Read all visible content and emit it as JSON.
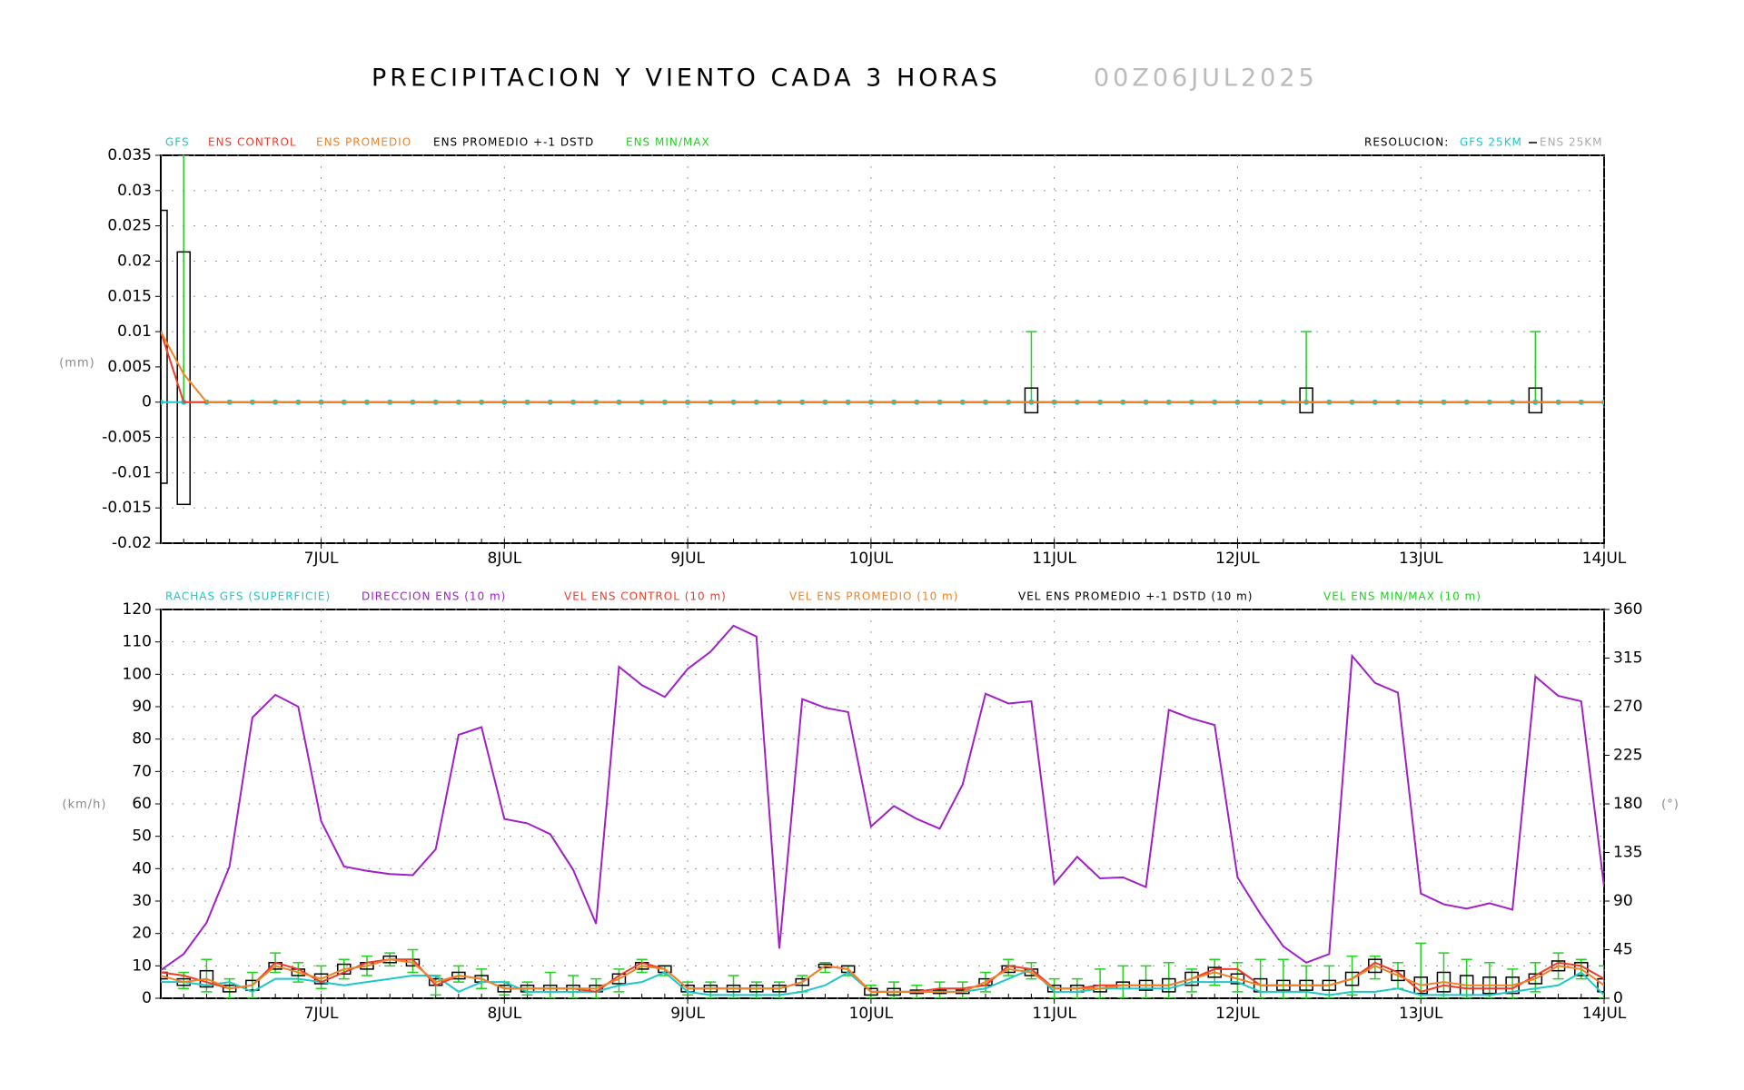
{
  "title": "PRECIPITACION Y VIENTO CADA 3 HORAS",
  "subtitle": "00Z06JUL2025",
  "chart_data": [
    {
      "type": "line",
      "ylabel": "(mm)",
      "grid": true,
      "categories": [
        null,
        null,
        null,
        null,
        null,
        null,
        null,
        "7JUL",
        null,
        null,
        null,
        null,
        null,
        null,
        null,
        "8JUL",
        null,
        null,
        null,
        null,
        null,
        null,
        null,
        "9JUL",
        null,
        null,
        null,
        null,
        null,
        null,
        null,
        "10JUL",
        null,
        null,
        null,
        null,
        null,
        null,
        null,
        "11JUL",
        null,
        null,
        null,
        null,
        null,
        null,
        null,
        "12JUL",
        null,
        null,
        null,
        null,
        null,
        null,
        null,
        "13JUL",
        null,
        null,
        null,
        null,
        null,
        null,
        null,
        "14JUL"
      ],
      "ylim": [
        -0.02,
        0.035
      ],
      "yticks": [
        0.035,
        0.03,
        0.025,
        0.02,
        0.015,
        0.01,
        0.005,
        0,
        -0.005,
        -0.01,
        -0.015,
        -0.02
      ],
      "series": [
        {
          "name": "GFS",
          "color": "#1ec8c8",
          "markers": true,
          "values": [
            0,
            0,
            0,
            0,
            0,
            0,
            0,
            0,
            0,
            0,
            0,
            0,
            0,
            0,
            0,
            0,
            0,
            0,
            0,
            0,
            0,
            0,
            0,
            0,
            0,
            0,
            0,
            0,
            0,
            0,
            0,
            0,
            0,
            0,
            0,
            0,
            0,
            0,
            0,
            0,
            0,
            0,
            0,
            0,
            0,
            0,
            0,
            0,
            0,
            0,
            0,
            0,
            0,
            0,
            0,
            0,
            0,
            0,
            0,
            0,
            0,
            0,
            0,
            0
          ]
        },
        {
          "name": "ENS CONTROL",
          "color": "#f03c28",
          "values": [
            0.01,
            0,
            0,
            0,
            0,
            0,
            0,
            0,
            0,
            0,
            0,
            0,
            0,
            0,
            0,
            0,
            0,
            0,
            0,
            0,
            0,
            0,
            0,
            0,
            0,
            0,
            0,
            0,
            0,
            0,
            0,
            0,
            0,
            0,
            0,
            0,
            0,
            0,
            0,
            0,
            0,
            0,
            0,
            0,
            0,
            0,
            0,
            0,
            0,
            0,
            0,
            0,
            0,
            0,
            0,
            0,
            0,
            0,
            0,
            0,
            0,
            0,
            0,
            0
          ]
        },
        {
          "name": "ENS PROMEDIO",
          "color": "#f08228",
          "values": [
            0.01,
            0.004,
            0,
            0,
            0,
            0,
            0,
            0,
            0,
            0,
            0,
            0,
            0,
            0,
            0,
            0,
            0,
            0,
            0,
            0,
            0,
            0,
            0,
            0,
            0,
            0,
            0,
            0,
            0,
            0,
            0,
            0,
            0,
            0,
            0,
            0,
            0,
            0,
            0,
            0,
            0,
            0,
            0,
            0,
            0,
            0,
            0,
            0,
            0,
            0,
            0,
            0,
            0,
            0,
            0,
            0,
            0,
            0,
            0,
            0,
            0,
            0,
            0,
            0
          ]
        }
      ],
      "band": {
        "name": "ENS PROMEDIO +-1 DSTD",
        "color": "#000000",
        "low": [
          -0.0115,
          -0.0145,
          null,
          null,
          null,
          null,
          null,
          null,
          null,
          null,
          null,
          null,
          null,
          null,
          null,
          null,
          null,
          null,
          null,
          null,
          null,
          null,
          null,
          null,
          null,
          null,
          null,
          null,
          null,
          null,
          null,
          null,
          null,
          null,
          null,
          null,
          null,
          null,
          -0.0015,
          null,
          null,
          null,
          null,
          null,
          null,
          null,
          null,
          null,
          null,
          null,
          -0.0015,
          null,
          null,
          null,
          null,
          null,
          null,
          null,
          null,
          null,
          -0.0015,
          null,
          null,
          null
        ],
        "high": [
          0.0272,
          0.0213,
          null,
          null,
          null,
          null,
          null,
          null,
          null,
          null,
          null,
          null,
          null,
          null,
          null,
          null,
          null,
          null,
          null,
          null,
          null,
          null,
          null,
          null,
          null,
          null,
          null,
          null,
          null,
          null,
          null,
          null,
          null,
          null,
          null,
          null,
          null,
          null,
          0.002,
          null,
          null,
          null,
          null,
          null,
          null,
          null,
          null,
          null,
          null,
          null,
          0.002,
          null,
          null,
          null,
          null,
          null,
          null,
          null,
          null,
          null,
          0.002,
          null,
          null,
          null
        ]
      },
      "range": {
        "name": "ENS MIN/MAX",
        "color": "#1ed21e",
        "min": [
          null,
          0,
          null,
          null,
          null,
          null,
          null,
          null,
          null,
          null,
          null,
          null,
          null,
          null,
          null,
          null,
          null,
          null,
          null,
          null,
          null,
          null,
          null,
          null,
          null,
          null,
          null,
          null,
          null,
          null,
          null,
          null,
          null,
          null,
          null,
          null,
          null,
          null,
          0,
          null,
          null,
          null,
          null,
          null,
          null,
          null,
          null,
          null,
          null,
          null,
          0,
          null,
          null,
          null,
          null,
          null,
          null,
          null,
          null,
          null,
          0,
          null,
          null,
          null
        ],
        "max": [
          null,
          0.035,
          null,
          null,
          null,
          null,
          null,
          null,
          null,
          null,
          null,
          null,
          null,
          null,
          null,
          null,
          null,
          null,
          null,
          null,
          null,
          null,
          null,
          null,
          null,
          null,
          null,
          null,
          null,
          null,
          null,
          null,
          null,
          null,
          null,
          null,
          null,
          null,
          0.01,
          null,
          null,
          null,
          null,
          null,
          null,
          null,
          null,
          null,
          null,
          null,
          0.01,
          null,
          null,
          null,
          null,
          null,
          null,
          null,
          null,
          null,
          0.01,
          null,
          null,
          null
        ]
      },
      "resolution_label": "RESOLUCION:",
      "resolution": [
        {
          "name": "GFS 25KM",
          "color": "#1ec8c8"
        },
        {
          "name": "ENS 25KM",
          "color": "#aaaaaa"
        }
      ]
    },
    {
      "type": "line",
      "ylabel": "(km/h)",
      "y2label": "(°)",
      "grid": true,
      "categories": [
        null,
        null,
        null,
        null,
        null,
        null,
        null,
        "7JUL",
        null,
        null,
        null,
        null,
        null,
        null,
        null,
        "8JUL",
        null,
        null,
        null,
        null,
        null,
        null,
        null,
        "9JUL",
        null,
        null,
        null,
        null,
        null,
        null,
        null,
        "10JUL",
        null,
        null,
        null,
        null,
        null,
        null,
        null,
        "11JUL",
        null,
        null,
        null,
        null,
        null,
        null,
        null,
        "12JUL",
        null,
        null,
        null,
        null,
        null,
        null,
        null,
        "13JUL",
        null,
        null,
        null,
        null,
        null,
        null,
        null,
        "14JUL"
      ],
      "ylim": [
        0,
        120
      ],
      "yticks": [
        0,
        10,
        20,
        30,
        40,
        50,
        60,
        70,
        80,
        90,
        100,
        110,
        120
      ],
      "y2lim": [
        0,
        360
      ],
      "y2ticks": [
        0,
        45,
        90,
        135,
        180,
        225,
        270,
        315,
        360
      ],
      "series": [
        {
          "name": "RACHAS GFS (SUPERFICIE)",
          "color": "#1ec8c8",
          "values": [
            5,
            5,
            4,
            5,
            2,
            6,
            6,
            5,
            4,
            5,
            6,
            7,
            7,
            2,
            5,
            5,
            2,
            2,
            2,
            2,
            4,
            5,
            8,
            2,
            1,
            1,
            1,
            1,
            2,
            4,
            8,
            2,
            2,
            2,
            2,
            2,
            3,
            6,
            9,
            2,
            2,
            3,
            3,
            3,
            3,
            5,
            5,
            5,
            2,
            2,
            2,
            1,
            2,
            2,
            3,
            1,
            1,
            1,
            1,
            2,
            3,
            4,
            8,
            1
          ]
        },
        {
          "name": "DIRECCION ENS (10 m)",
          "color": "#a020c8",
          "axis": "y2",
          "values": [
            26,
            41,
            70,
            122,
            260,
            281,
            270,
            164,
            122,
            118,
            115,
            114,
            138,
            244,
            251,
            166,
            162,
            152,
            119,
            69,
            307,
            290,
            279,
            305,
            321,
            345,
            335,
            46,
            277,
            269,
            265,
            159,
            178,
            166,
            157,
            198,
            282,
            273,
            275,
            106,
            131,
            111,
            112,
            103,
            267,
            259,
            253,
            112,
            78,
            48,
            33,
            41,
            317,
            292,
            283,
            97,
            87,
            83,
            88,
            82,
            298,
            280,
            275,
            103
          ]
        },
        {
          "name": "VEL ENS CONTROL (10 m)",
          "color": "#f03c28",
          "values": [
            8,
            7,
            5,
            3,
            4,
            11,
            9,
            5,
            8,
            11,
            12,
            12,
            4,
            7,
            6,
            3,
            3,
            3,
            3,
            2,
            7,
            11,
            9,
            3,
            3,
            3,
            3,
            3,
            5,
            10,
            9,
            2,
            2,
            2,
            3,
            3,
            4,
            10,
            9,
            3,
            3,
            4,
            4,
            4,
            4,
            6,
            9,
            9,
            4,
            4,
            4,
            4,
            6,
            11,
            8,
            2,
            4,
            3,
            3,
            3,
            7,
            11,
            10,
            6
          ]
        },
        {
          "name": "VEL ENS PROMEDIO (10 m)",
          "color": "#f08228",
          "values": [
            7,
            5,
            6,
            3,
            4,
            10,
            8,
            6,
            9,
            10,
            12,
            11,
            5,
            7,
            6,
            3,
            3,
            3,
            3,
            3,
            6,
            10,
            9,
            3,
            3,
            3,
            3,
            3,
            5,
            10,
            9,
            2,
            2,
            2,
            2,
            2,
            5,
            9,
            8,
            3,
            3,
            3,
            4,
            4,
            4,
            6,
            8,
            6,
            4,
            4,
            4,
            4,
            6,
            10,
            7,
            4,
            5,
            4,
            4,
            4,
            6,
            10,
            9,
            4
          ]
        }
      ],
      "band": {
        "name": "VEL ENS PROMEDIO +-1 DSTD (10 m)",
        "color": "#000000",
        "low": [
          6,
          4,
          3.5,
          2,
          2.5,
          9,
          7,
          4.5,
          7.5,
          9,
          11,
          10,
          4,
          6,
          5,
          2,
          2,
          2,
          2,
          2,
          4.5,
          9,
          8,
          2,
          2,
          2,
          2,
          2,
          4,
          9.5,
          8,
          1,
          1,
          1.5,
          1.5,
          1.5,
          4,
          8,
          7,
          2,
          2,
          2,
          3,
          2.5,
          2,
          4,
          6.5,
          4.5,
          2,
          2.5,
          2.5,
          2.5,
          4,
          8,
          5.5,
          1.5,
          2,
          1,
          1.5,
          1.5,
          4.5,
          8.5,
          7,
          2
        ],
        "high": [
          8,
          6,
          8.5,
          4,
          5.5,
          11,
          9,
          7.5,
          10.5,
          11,
          13,
          12,
          6,
          8,
          7,
          4,
          4,
          4,
          4,
          4,
          7.5,
          11,
          10,
          4,
          4,
          4,
          4,
          4,
          6,
          10.5,
          10,
          3,
          3,
          2.5,
          2.5,
          2.5,
          6,
          10,
          9,
          4,
          4,
          4,
          5,
          5.5,
          6,
          8,
          9.5,
          7.5,
          6,
          5.5,
          5.5,
          5.5,
          8,
          12,
          8.5,
          6.5,
          8,
          7,
          6.5,
          6.5,
          7.5,
          11.5,
          11,
          6
        ]
      },
      "range": {
        "name": "VEL ENS MIN/MAX (10 m)",
        "color": "#1ed21e",
        "min": [
          5,
          3,
          2,
          0,
          0,
          8,
          5,
          3,
          6,
          7,
          10,
          8,
          1,
          5,
          3,
          1,
          1,
          0,
          0,
          0,
          2,
          8,
          7,
          1,
          0,
          0,
          0,
          0,
          2,
          8,
          7,
          0,
          0,
          0,
          0,
          0,
          2,
          7,
          6,
          0,
          0,
          0,
          0,
          0,
          0,
          2,
          4,
          2,
          0,
          0,
          0,
          0,
          1,
          6,
          3,
          0,
          0,
          0,
          0,
          0,
          2,
          6,
          6,
          0
        ],
        "max": [
          9,
          8,
          12,
          6,
          8,
          14,
          11,
          10,
          12,
          13,
          14,
          15,
          7,
          10,
          9,
          5,
          5,
          8,
          7,
          6,
          9,
          12,
          10,
          5,
          5,
          7,
          5,
          5,
          7,
          11,
          10,
          4,
          5,
          4,
          5,
          5,
          8,
          12,
          11,
          6,
          6,
          9,
          10,
          10,
          11,
          9,
          12,
          11,
          12,
          12,
          10,
          10,
          13,
          13,
          11,
          17,
          14,
          12,
          11,
          9,
          11,
          14,
          12,
          10
        ]
      }
    }
  ]
}
